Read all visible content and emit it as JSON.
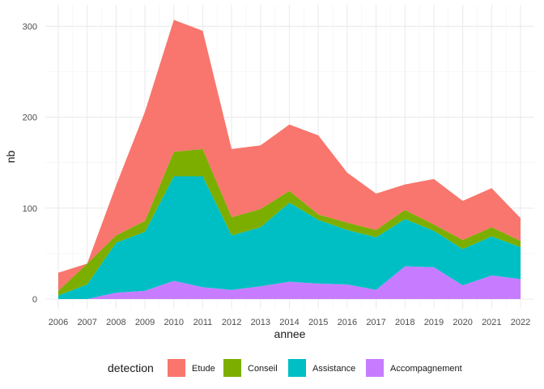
{
  "chart_data": {
    "type": "area",
    "stacked": true,
    "xlabel": "annee",
    "ylabel": "nb",
    "x": [
      2006,
      2007,
      2008,
      2009,
      2010,
      2011,
      2012,
      2013,
      2014,
      2015,
      2016,
      2017,
      2018,
      2019,
      2020,
      2021,
      2022
    ],
    "xlim": [
      2006,
      2022
    ],
    "ylim": [
      0,
      300
    ],
    "y_ticks": [
      0,
      100,
      200,
      300
    ],
    "grid": true,
    "legend": {
      "title": "detection",
      "placement": "bottom"
    },
    "series": [
      {
        "name": "Etude",
        "color": "#F8766D",
        "values": [
          20,
          0,
          55,
          120,
          145,
          130,
          75,
          70,
          73,
          87,
          55,
          40,
          28,
          50,
          43,
          43,
          25
        ]
      },
      {
        "name": "Conseil",
        "color": "#7CAE00",
        "values": [
          5,
          23,
          8,
          12,
          27,
          30,
          20,
          20,
          13,
          6,
          8,
          8,
          10,
          7,
          10,
          10,
          7
        ]
      },
      {
        "name": "Assistance",
        "color": "#00BFC4",
        "values": [
          4,
          16,
          55,
          65,
          115,
          122,
          60,
          65,
          87,
          70,
          60,
          58,
          52,
          40,
          40,
          43,
          35
        ]
      },
      {
        "name": "Accompagnement",
        "color": "#C77CFF",
        "values": [
          null,
          0,
          7,
          9,
          20,
          13,
          10,
          14,
          19,
          17,
          16,
          10,
          36,
          35,
          15,
          26,
          22
        ]
      }
    ]
  }
}
